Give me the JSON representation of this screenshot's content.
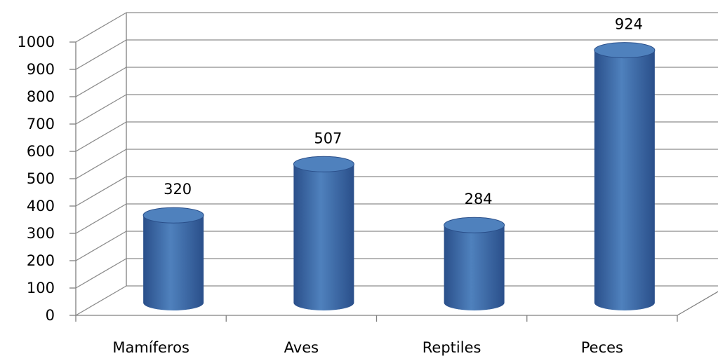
{
  "chart_data": {
    "type": "bar",
    "style": "3d-cylinder",
    "categories": [
      "Mamíferos",
      "Aves",
      "Reptiles",
      "Peces"
    ],
    "values": [
      320,
      507,
      284,
      924
    ],
    "data_labels": [
      "320",
      "507",
      "284",
      "924"
    ],
    "ylim": [
      0,
      1000
    ],
    "yticks": [
      "0",
      "100",
      "200",
      "300",
      "400",
      "500",
      "600",
      "700",
      "800",
      "900",
      "1000"
    ],
    "grid": true,
    "legend": "none",
    "colors": {
      "bar": "#4f81bd",
      "bar_dark": "#2a4f8a",
      "bar_light": "#8db1e3",
      "grid": "#8c8c8c",
      "axis": "#808080"
    }
  }
}
